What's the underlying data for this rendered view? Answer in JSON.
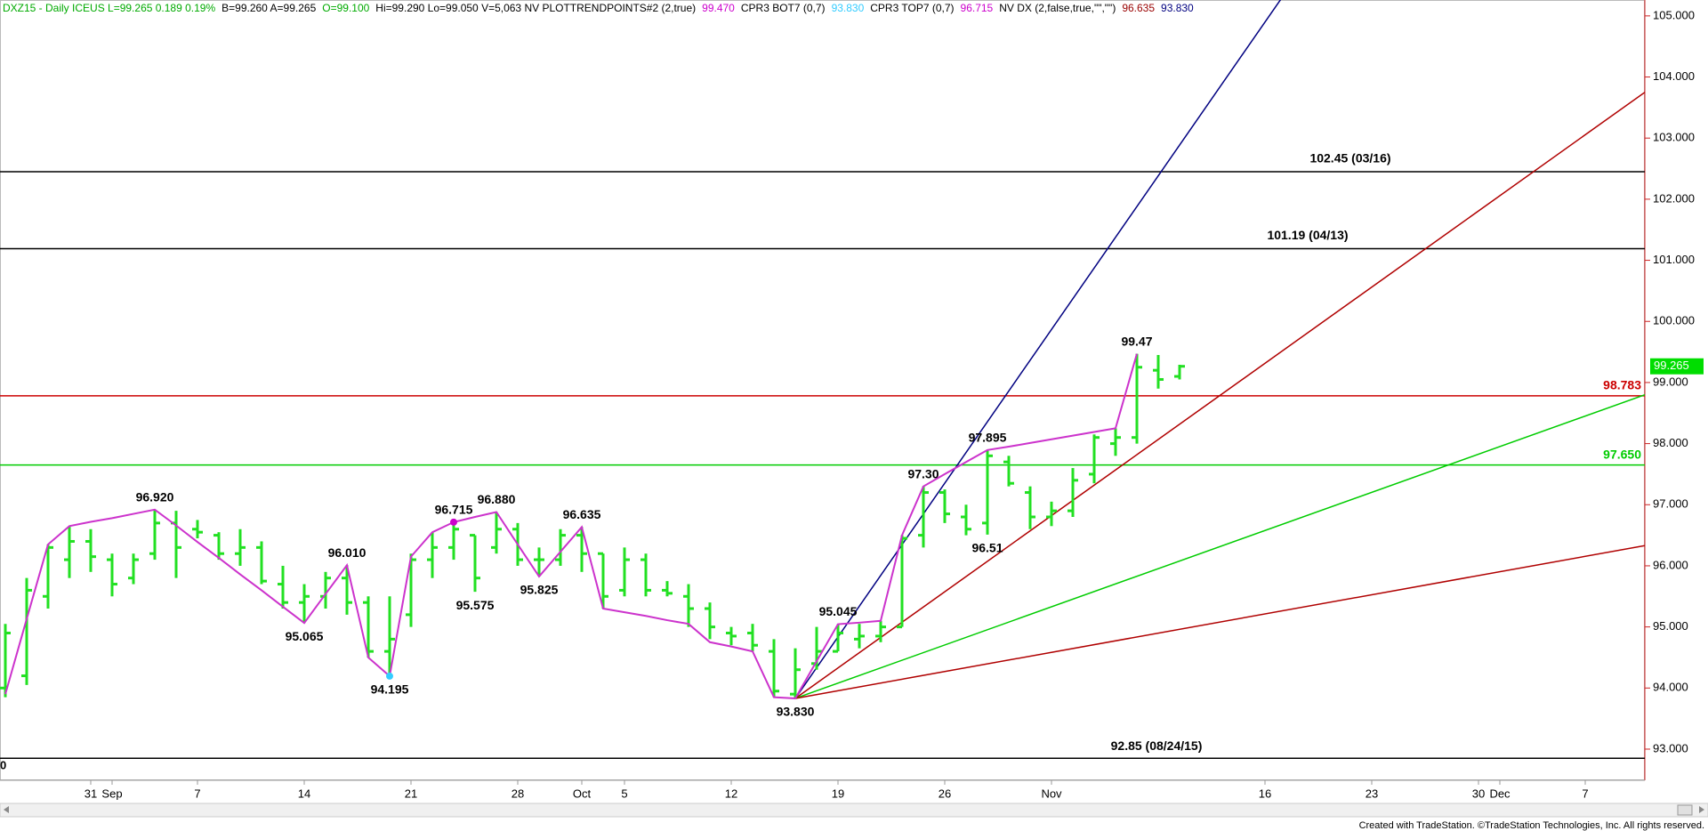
{
  "chart_data": {
    "type": "ohlc",
    "header": [
      {
        "text": "DXZ15 - Daily ICEUS L=99.265 0.189 0.19%",
        "color": "#00aa00"
      },
      {
        "text": "B=99.260 A=99.265",
        "color": "#000000"
      },
      {
        "text": "O=99.100",
        "color": "#00aa00"
      },
      {
        "text": "Hi=99.290 Lo=99.050 V=5,063 NV PLOTTRENDPOINTS#2 (2,true)",
        "color": "#000000"
      },
      {
        "text": "99.470",
        "color": "#cc00cc"
      },
      {
        "text": "CPR3 BOT7 (0,7)",
        "color": "#000000"
      },
      {
        "text": "93.830",
        "color": "#33ccff"
      },
      {
        "text": "CPR3 TOP7 (0,7)",
        "color": "#000000"
      },
      {
        "text": "96.715",
        "color": "#cc00cc"
      },
      {
        "text": "NV DX (2,false,true,\"\",\"\")",
        "color": "#000000"
      },
      {
        "text": "96.635",
        "color": "#990000"
      },
      {
        "text": "93.830",
        "color": "#000080"
      }
    ],
    "categories": [
      null,
      null,
      null,
      null,
      "31",
      "Sep",
      null,
      null,
      null,
      "7",
      null,
      null,
      null,
      null,
      "14",
      null,
      null,
      null,
      null,
      "21",
      null,
      null,
      null,
      null,
      "28",
      null,
      null,
      "Oct",
      null,
      "5",
      null,
      null,
      null,
      null,
      "12",
      null,
      null,
      null,
      null,
      "19",
      null,
      null,
      null,
      null,
      "26",
      null,
      null,
      null,
      null,
      "Nov",
      null,
      null,
      null,
      null,
      null,
      null,
      null,
      null,
      null,
      "16",
      null,
      null,
      null,
      null,
      "23",
      null,
      null,
      null,
      null,
      "30",
      "Dec",
      null,
      null,
      null,
      "7",
      null,
      null
    ],
    "ohlc": {
      "color": "#22e022",
      "open": [
        94.0,
        94.2,
        95.5,
        96.1,
        96.4,
        96.1,
        95.8,
        96.2,
        96.7,
        96.6,
        96.5,
        96.2,
        96.3,
        95.7,
        95.4,
        95.5,
        95.8,
        95.4,
        94.6,
        95.2,
        96.1,
        96.3,
        96.5,
        96.3,
        96.6,
        96.1,
        96.1,
        96.5,
        96.2,
        95.6,
        96.1,
        95.6,
        95.5,
        95.3,
        94.9,
        94.9,
        94.6,
        93.9,
        94.4,
        94.6,
        94.8,
        94.85,
        95.0,
        96.5,
        97.2,
        96.8,
        96.7,
        97.7,
        97.2,
        96.8,
        96.9,
        97.5,
        98.0,
        98.1,
        99.2,
        99.1,
        null,
        null,
        null,
        null,
        null,
        null,
        null,
        null,
        null,
        null,
        null,
        null,
        null,
        null,
        null,
        null,
        null,
        null,
        null,
        null,
        null
      ],
      "high": [
        95.05,
        95.8,
        96.35,
        96.65,
        96.6,
        96.2,
        96.2,
        96.92,
        96.9,
        96.75,
        96.55,
        96.6,
        96.4,
        96.0,
        95.7,
        95.9,
        96.01,
        95.5,
        95.5,
        96.2,
        96.55,
        96.715,
        96.5,
        96.88,
        96.7,
        96.3,
        96.6,
        96.635,
        96.2,
        96.3,
        96.2,
        95.75,
        95.7,
        95.4,
        95.0,
        95.05,
        94.8,
        94.65,
        95.0,
        95.045,
        95.05,
        95.1,
        96.5,
        97.3,
        97.25,
        97.0,
        97.895,
        97.8,
        97.3,
        97.05,
        97.6,
        98.15,
        98.25,
        99.47,
        99.45,
        99.29,
        null,
        null,
        null,
        null,
        null,
        null,
        null,
        null,
        null,
        null,
        null,
        null,
        null,
        null,
        null,
        null,
        null,
        null,
        null,
        null,
        null
      ],
      "low": [
        93.85,
        94.05,
        95.3,
        95.8,
        95.9,
        95.5,
        95.7,
        96.1,
        95.8,
        96.45,
        96.1,
        96.0,
        95.7,
        95.3,
        95.065,
        95.3,
        95.2,
        94.5,
        94.195,
        95.0,
        95.8,
        96.1,
        95.575,
        96.2,
        96.0,
        95.825,
        96.0,
        95.9,
        95.3,
        95.5,
        95.5,
        95.5,
        95.0,
        94.8,
        94.7,
        94.6,
        93.85,
        93.83,
        94.3,
        94.6,
        94.65,
        94.75,
        95.0,
        96.3,
        96.7,
        96.5,
        96.51,
        97.3,
        96.6,
        96.65,
        96.8,
        97.35,
        97.8,
        98.0,
        98.9,
        99.05,
        null,
        null,
        null,
        null,
        null,
        null,
        null,
        null,
        null,
        null,
        null,
        null,
        null,
        null,
        null,
        null,
        null,
        null,
        null,
        null,
        null
      ],
      "close": [
        94.9,
        95.6,
        96.3,
        96.4,
        96.15,
        95.7,
        96.1,
        96.7,
        96.3,
        96.55,
        96.2,
        96.3,
        95.75,
        95.4,
        95.5,
        95.8,
        95.4,
        94.6,
        94.8,
        96.1,
        96.3,
        96.6,
        95.8,
        96.6,
        96.1,
        96.1,
        96.5,
        96.2,
        95.5,
        96.1,
        95.6,
        95.55,
        95.3,
        95.0,
        94.85,
        94.7,
        93.95,
        94.3,
        94.6,
        94.9,
        94.85,
        95.0,
        96.45,
        97.2,
        96.85,
        96.6,
        97.8,
        97.35,
        96.8,
        96.9,
        97.4,
        98.1,
        98.1,
        99.25,
        99.05,
        99.265,
        null,
        null,
        null,
        null,
        null,
        null,
        null,
        null,
        null,
        null,
        null,
        null,
        null,
        null,
        null,
        null,
        null,
        null,
        null,
        null,
        null
      ]
    },
    "swing_line": {
      "color": "#cc33cc",
      "values": [
        93.9,
        95.13,
        96.35,
        96.65,
        96.72,
        96.78,
        96.85,
        96.92,
        96.66,
        96.39,
        96.13,
        95.86,
        95.6,
        95.33,
        95.065,
        95.54,
        96.01,
        94.5,
        94.195,
        96.15,
        96.55,
        96.715,
        96.8,
        96.88,
        96.35,
        95.825,
        96.23,
        96.635,
        95.3,
        95.24,
        95.18,
        95.11,
        95.05,
        94.75,
        94.68,
        94.6,
        93.85,
        93.83,
        94.44,
        95.045,
        95.07,
        95.1,
        96.5,
        97.3,
        97.5,
        97.7,
        97.895,
        97.95,
        98.01,
        98.07,
        98.13,
        98.19,
        98.25,
        99.47,
        null,
        null,
        null,
        null,
        null,
        null,
        null,
        null,
        null,
        null,
        null,
        null,
        null,
        null,
        null,
        null,
        null,
        null,
        null,
        null,
        null,
        null,
        null
      ]
    },
    "pivot_labels": [
      {
        "value": 96.92,
        "label": "96.920"
      },
      {
        "value": 95.065,
        "label": "95.065"
      },
      {
        "value": 96.01,
        "label": "96.010"
      },
      {
        "value": 94.195,
        "label": "94.195"
      },
      {
        "value": 96.715,
        "label": "96.715"
      },
      {
        "value": 96.88,
        "label": "96.880"
      },
      {
        "value": 95.575,
        "label": "95.575"
      },
      {
        "value": 95.825,
        "label": "95.825"
      },
      {
        "value": 96.635,
        "label": "96.635"
      },
      {
        "value": 93.83,
        "label": "93.830"
      },
      {
        "value": 95.045,
        "label": "95.045"
      },
      {
        "value": 97.3,
        "label": "97.30"
      },
      {
        "value": 97.895,
        "label": "97.895"
      },
      {
        "value": 96.51,
        "label": "96.51"
      },
      {
        "value": 99.47,
        "label": "99.47"
      }
    ],
    "levels": [
      {
        "value": 102.45,
        "label": "102.45 (03/16)",
        "color": "#000000"
      },
      {
        "value": 101.19,
        "label": "101.19 (04/13)",
        "color": "#000000"
      },
      {
        "value": 98.783,
        "label": "98.783",
        "color": "#cc0000"
      },
      {
        "value": 97.65,
        "label": "97.650",
        "color": "#00cc00"
      },
      {
        "value": 92.85,
        "label": "92.85 (08/24/15)",
        "color": "#000000"
      }
    ],
    "fan_lines": [
      {
        "color": "#000080",
        "values": [
          93.83,
          113.85
        ]
      },
      {
        "color": "#b00000",
        "values": [
          93.83,
          103.75
        ]
      },
      {
        "color": "#00cc00",
        "values": [
          93.83,
          98.8
        ]
      },
      {
        "color": "#b00000",
        "values": [
          93.83,
          96.33
        ]
      }
    ],
    "edge_label": "0",
    "ylim": [
      92.49,
      105.26
    ],
    "yticks": [
      {
        "value": 93,
        "label": "93.000"
      },
      {
        "value": 94,
        "label": "94.000"
      },
      {
        "value": 95,
        "label": "95.000"
      },
      {
        "value": 96,
        "label": "96.000"
      },
      {
        "value": 97,
        "label": "97.000"
      },
      {
        "value": 98,
        "label": "98.000"
      },
      {
        "value": 99,
        "label": "99.000"
      },
      {
        "value": 100,
        "label": "100.000"
      },
      {
        "value": 101,
        "label": "101.000"
      },
      {
        "value": 102,
        "label": "102.000"
      },
      {
        "value": 103,
        "label": "103.000"
      },
      {
        "value": 104,
        "label": "104.000"
      },
      {
        "value": 105,
        "label": "105.000"
      }
    ],
    "grid": false,
    "footer": "Created with TradeStation. ©TradeStation Technologies, Inc. All rights reserved."
  }
}
